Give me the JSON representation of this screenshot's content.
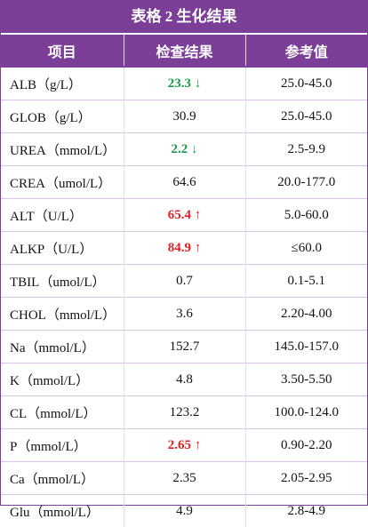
{
  "header": {
    "title": "表格 2 生化结果"
  },
  "table": {
    "columns": [
      "项目",
      "检查结果",
      "参考值"
    ],
    "rows": [
      {
        "item": "ALB（g/L）",
        "result": "23.3",
        "flag": "↓",
        "color": "#1a9a4a",
        "ref": "25.0-45.0"
      },
      {
        "item": "GLOB（g/L）",
        "result": "30.9",
        "ref": "25.0-45.0"
      },
      {
        "item": "UREA（mmol/L）",
        "result": "2.2",
        "flag": "↓",
        "color": "#1a9a4a",
        "ref": "2.5-9.9"
      },
      {
        "item": "CREA（umol/L）",
        "result": "64.6",
        "ref": "20.0-177.0"
      },
      {
        "item": "ALT（U/L）",
        "result": "65.4",
        "flag": "↑",
        "color": "#e02020",
        "ref": "5.0-60.0"
      },
      {
        "item": "ALKP（U/L）",
        "result": "84.9",
        "flag": "↑",
        "color": "#e02020",
        "ref": "≤60.0"
      },
      {
        "item": "TBIL（umol/L）",
        "result": "0.7",
        "ref": "0.1-5.1"
      },
      {
        "item": "CHOL（mmol/L）",
        "result": "3.6",
        "ref": "2.20-4.00"
      },
      {
        "item": "Na（mmol/L）",
        "result": "152.7",
        "ref": "145.0-157.0"
      },
      {
        "item": "K（mmol/L）",
        "result": "4.8",
        "ref": "3.50-5.50"
      },
      {
        "item": "CL（mmol/L）",
        "result": "123.2",
        "ref": "100.0-124.0"
      },
      {
        "item": "P（mmol/L）",
        "result": "2.65",
        "flag": "↑",
        "color": "#e02020",
        "ref": "0.90-2.20"
      },
      {
        "item": "Ca（mmol/L）",
        "result": "2.35",
        "ref": "2.05-2.95"
      },
      {
        "item": "Glu（mmol/L）",
        "result": "4.9",
        "ref": "2.8-4.9"
      }
    ]
  }
}
